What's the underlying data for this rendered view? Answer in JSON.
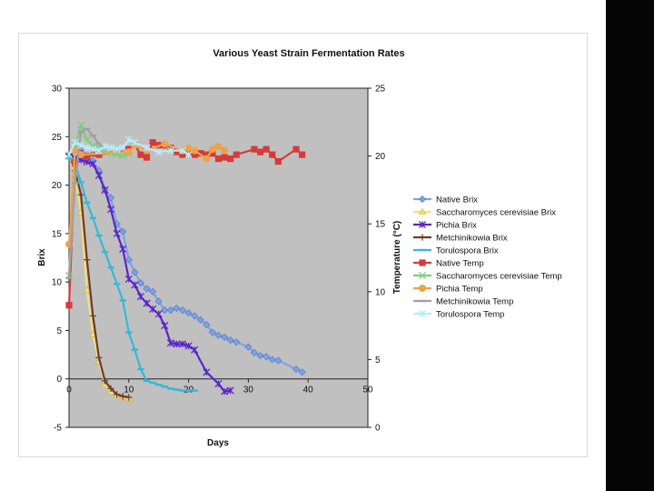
{
  "chart_data": {
    "type": "line",
    "title": "Various Yeast Strain Fermentation Rates",
    "xlabel": "Days",
    "ylabel": "Brix",
    "y2label": "Temperature (°C)",
    "xlim": [
      0,
      50
    ],
    "ylim": [
      -5,
      30
    ],
    "y2lim": [
      0,
      25
    ],
    "x_ticks": [
      "0",
      "10",
      "20",
      "30",
      "40",
      "50"
    ],
    "y_ticks": [
      "-5",
      "0",
      "5",
      "10",
      "15",
      "20",
      "25",
      "30"
    ],
    "y2_ticks": [
      "0",
      "5",
      "10",
      "15",
      "20",
      "25"
    ],
    "plot_background": "#c0c0c0",
    "series": [
      {
        "name": "Native Brix",
        "axis": "left",
        "color": "#7fa2e6",
        "marker": "diamond",
        "x": [
          0,
          1,
          2,
          3,
          4,
          5,
          6,
          7,
          8,
          9,
          10,
          11,
          12,
          13,
          14,
          15,
          16,
          17,
          18,
          19,
          20,
          21,
          22,
          23,
          24,
          25,
          26,
          27,
          28,
          30,
          31,
          32,
          33,
          34,
          35,
          38,
          39
        ],
        "y": [
          23.2,
          23.8,
          23.6,
          23.0,
          22.5,
          21.5,
          19.5,
          18.7,
          16.0,
          15.2,
          12.3,
          11.0,
          9.9,
          9.3,
          9.0,
          8.0,
          7.1,
          7.1,
          7.3,
          7.1,
          6.8,
          6.5,
          6.1,
          5.6,
          4.8,
          4.5,
          4.3,
          4.0,
          3.8,
          3.3,
          2.7,
          2.4,
          2.3,
          2.0,
          1.9,
          1.0,
          0.7
        ]
      },
      {
        "name": "Saccharomyces cerevisiae Brix",
        "axis": "left",
        "color": "#f3e07a",
        "marker": "triangle",
        "x": [
          0,
          1,
          2,
          3,
          4,
          5,
          6,
          7,
          8,
          9,
          10
        ],
        "y": [
          23.0,
          21.0,
          17.2,
          9.2,
          4.6,
          1.8,
          -0.6,
          -1.3,
          -1.7,
          -1.9,
          -2.0
        ]
      },
      {
        "name": "Pichia Brix",
        "axis": "left",
        "color": "#5a26c8",
        "marker": "star",
        "x": [
          0,
          1,
          2,
          3,
          4,
          5,
          6,
          7,
          8,
          9,
          10,
          11,
          12,
          13,
          14,
          15,
          16,
          17,
          18,
          19,
          20,
          21,
          23,
          25,
          26,
          27
        ],
        "y": [
          23.0,
          22.8,
          22.6,
          22.4,
          22.2,
          21.0,
          19.5,
          17.5,
          15.0,
          13.4,
          10.3,
          9.7,
          8.5,
          7.8,
          7.2,
          6.7,
          5.5,
          3.7,
          3.6,
          3.6,
          3.4,
          3.0,
          0.7,
          -0.5,
          -1.3,
          -1.2
        ]
      },
      {
        "name": "Metchinikowia Brix",
        "axis": "left",
        "color": "#6e3a2a",
        "marker": "plus",
        "x": [
          0,
          1,
          2,
          3,
          4,
          5,
          6,
          7,
          8,
          9,
          10
        ],
        "y": [
          23.2,
          21.5,
          19.0,
          12.3,
          6.5,
          2.2,
          -0.2,
          -1.0,
          -1.6,
          -1.8,
          -1.9
        ]
      },
      {
        "name": "Torulospora Brix",
        "axis": "left",
        "color": "#35b8d8",
        "marker": "dash",
        "x": [
          0,
          1,
          2,
          3,
          4,
          5,
          6,
          7,
          8,
          9,
          10,
          11,
          12,
          13,
          14,
          15,
          16,
          17,
          18,
          19,
          20,
          21
        ],
        "y": [
          22.8,
          22.2,
          20.3,
          18.2,
          16.6,
          14.8,
          13.1,
          11.5,
          9.8,
          8.1,
          4.8,
          3.0,
          1.0,
          -0.2,
          -0.4,
          -0.6,
          -0.8,
          -1.0,
          -1.1,
          -1.2,
          -1.2,
          -1.2
        ]
      },
      {
        "name": "Native Temp",
        "axis": "right",
        "color": "#d83a3a",
        "marker": "square",
        "x": [
          0,
          1,
          2,
          3,
          4,
          5,
          10,
          11,
          12,
          13,
          14,
          15,
          16,
          17,
          18,
          19,
          20,
          21,
          22,
          23,
          24,
          25,
          26,
          27,
          28,
          31,
          32,
          33,
          34,
          35,
          38,
          39
        ],
        "y": [
          9.0,
          19.5,
          20.2,
          20.0,
          20.2,
          20.1,
          20.5,
          20.8,
          20.1,
          19.9,
          21.0,
          20.8,
          20.8,
          20.6,
          20.3,
          20.1,
          20.4,
          20.1,
          20.2,
          20.1,
          20.2,
          19.8,
          19.9,
          19.8,
          20.1,
          20.5,
          20.3,
          20.5,
          20.1,
          19.6,
          20.5,
          20.1
        ]
      },
      {
        "name": "Saccharomyces cerevisiae Temp",
        "axis": "right",
        "color": "#7ad07a",
        "marker": "x",
        "x": [
          0,
          1,
          2,
          3,
          4,
          5,
          6,
          7,
          8,
          9,
          10
        ],
        "y": [
          11.2,
          20.5,
          22.3,
          21.2,
          20.7,
          20.6,
          20.4,
          20.2,
          20.1,
          20.0,
          20.2
        ]
      },
      {
        "name": "Pichia Temp",
        "axis": "right",
        "color": "#f0a14a",
        "marker": "circle",
        "x": [
          0,
          1,
          2,
          10,
          11,
          13,
          16,
          19,
          20,
          21,
          23,
          24,
          25,
          26
        ],
        "y": [
          13.5,
          20.4,
          20.1,
          20.3,
          20.8,
          20.4,
          20.9,
          20.4,
          20.6,
          20.4,
          19.8,
          20.5,
          20.7,
          20.4
        ]
      },
      {
        "name": "Metchinikowia Temp",
        "axis": "right",
        "color": "#a0a0a0",
        "marker": "dash",
        "x": [
          0,
          1,
          2,
          3,
          4,
          5,
          6,
          7,
          8
        ],
        "y": [
          11.0,
          18.0,
          21.8,
          22.0,
          21.5,
          20.9,
          20.6,
          20.5,
          20.5
        ]
      },
      {
        "name": "Torulospora Temp",
        "axis": "right",
        "color": "#b8ecf8",
        "marker": "star",
        "x": [
          0,
          1,
          2,
          3,
          4,
          5,
          6,
          7,
          8,
          9,
          10,
          11,
          13,
          15,
          17,
          19,
          20
        ],
        "y": [
          20.1,
          21.0,
          20.8,
          20.6,
          20.5,
          20.4,
          20.7,
          20.6,
          20.5,
          20.6,
          21.2,
          21.0,
          20.6,
          20.3,
          20.4,
          20.4,
          20.1
        ]
      }
    ]
  }
}
